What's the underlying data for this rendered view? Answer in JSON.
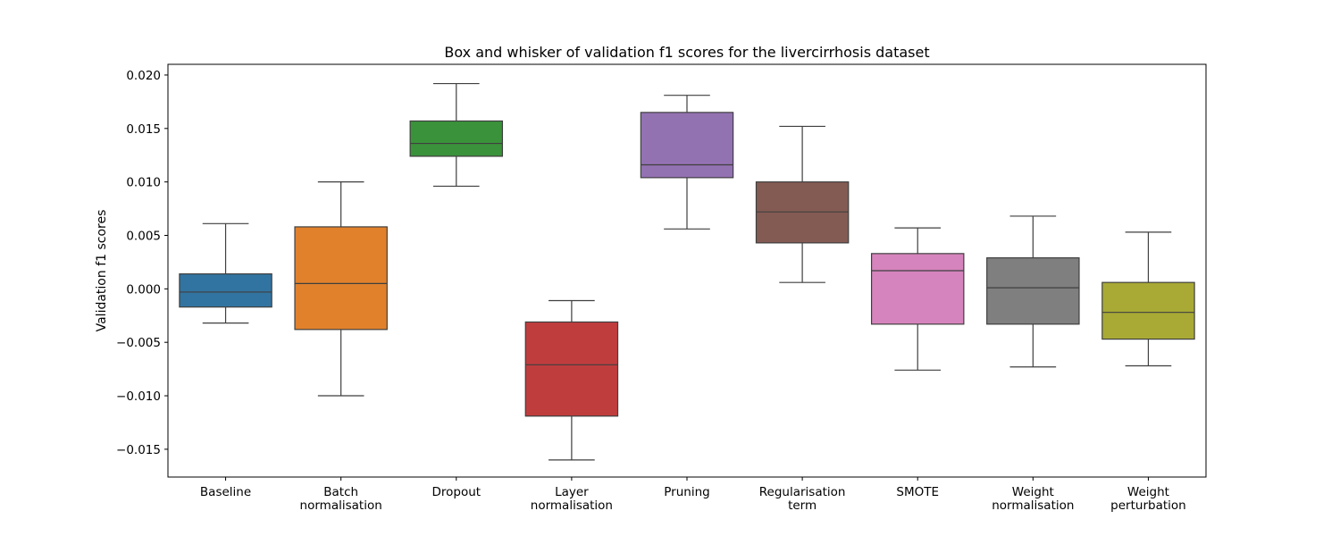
{
  "chart_data": {
    "type": "box",
    "title": "Box and whisker of validation f1 scores for the livercirrhosis dataset",
    "xlabel": "",
    "ylabel": "Validation f1 scores",
    "ylim": [
      -0.0176,
      0.021
    ],
    "yticks": [
      -0.015,
      -0.01,
      -0.005,
      0.0,
      0.005,
      0.01,
      0.015,
      0.02
    ],
    "ytick_labels": [
      "−0.015",
      "−0.010",
      "−0.005",
      "0.000",
      "0.005",
      "0.010",
      "0.015",
      "0.020"
    ],
    "grid": false,
    "categories": [
      {
        "label_lines": [
          "Baseline"
        ],
        "color": "#3274a1"
      },
      {
        "label_lines": [
          "Batch",
          "normalisation"
        ],
        "color": "#e1812c"
      },
      {
        "label_lines": [
          "Dropout"
        ],
        "color": "#3a923a"
      },
      {
        "label_lines": [
          "Layer",
          "normalisation"
        ],
        "color": "#c03d3e"
      },
      {
        "label_lines": [
          "Pruning"
        ],
        "color": "#9372b2"
      },
      {
        "label_lines": [
          "Regularisation",
          "term"
        ],
        "color": "#845b53"
      },
      {
        "label_lines": [
          "SMOTE"
        ],
        "color": "#d684bd"
      },
      {
        "label_lines": [
          "Weight",
          "normalisation"
        ],
        "color": "#7f7f7f"
      },
      {
        "label_lines": [
          "Weight",
          "perturbation"
        ],
        "color": "#a9aa35"
      }
    ],
    "boxes": [
      {
        "whislo": -0.0032,
        "q1": -0.0017,
        "median": -0.0003,
        "q3": 0.0014,
        "whishi": 0.0061
      },
      {
        "whislo": -0.01,
        "q1": -0.0038,
        "median": 0.0005,
        "q3": 0.0058,
        "whishi": 0.01
      },
      {
        "whislo": 0.0096,
        "q1": 0.0124,
        "median": 0.0136,
        "q3": 0.0157,
        "whishi": 0.0192
      },
      {
        "whislo": -0.016,
        "q1": -0.0119,
        "median": -0.0071,
        "q3": -0.0031,
        "whishi": -0.0011
      },
      {
        "whislo": 0.0056,
        "q1": 0.0104,
        "median": 0.0116,
        "q3": 0.0165,
        "whishi": 0.0181
      },
      {
        "whislo": 0.0006,
        "q1": 0.0043,
        "median": 0.0072,
        "q3": 0.01,
        "whishi": 0.0152
      },
      {
        "whislo": -0.0076,
        "q1": -0.0033,
        "median": 0.0017,
        "q3": 0.0033,
        "whishi": 0.0057
      },
      {
        "whislo": -0.0073,
        "q1": -0.0033,
        "median": 0.0001,
        "q3": 0.0029,
        "whishi": 0.0068
      },
      {
        "whislo": -0.0072,
        "q1": -0.0047,
        "median": -0.0022,
        "q3": 0.0006,
        "whishi": 0.0053
      }
    ]
  }
}
